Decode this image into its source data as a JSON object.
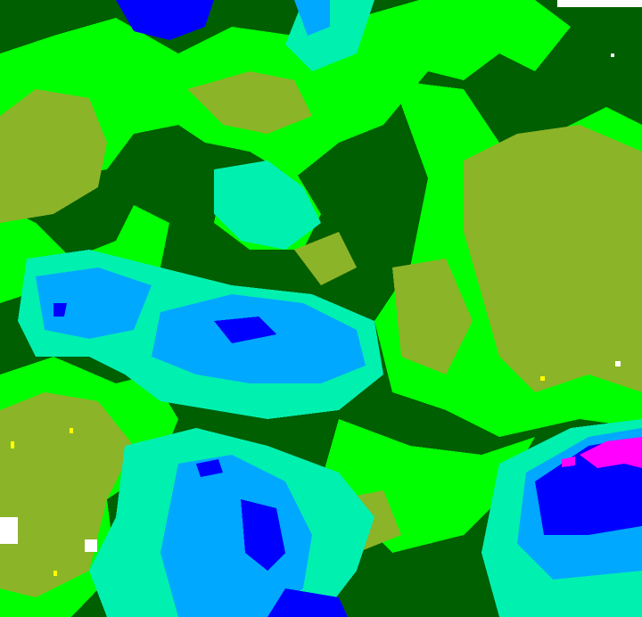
{
  "map": {
    "type": "classified-raster",
    "colors": {
      "dark_green": "#005f00",
      "bright_green": "#00ff00",
      "olive": "#8cb428",
      "aqua": "#00f0b0",
      "cyan_blue": "#00a8ff",
      "blue": "#0000ff",
      "magenta": "#ff00ff",
      "yellow": "#ffff00",
      "white": "#ffffff"
    }
  }
}
